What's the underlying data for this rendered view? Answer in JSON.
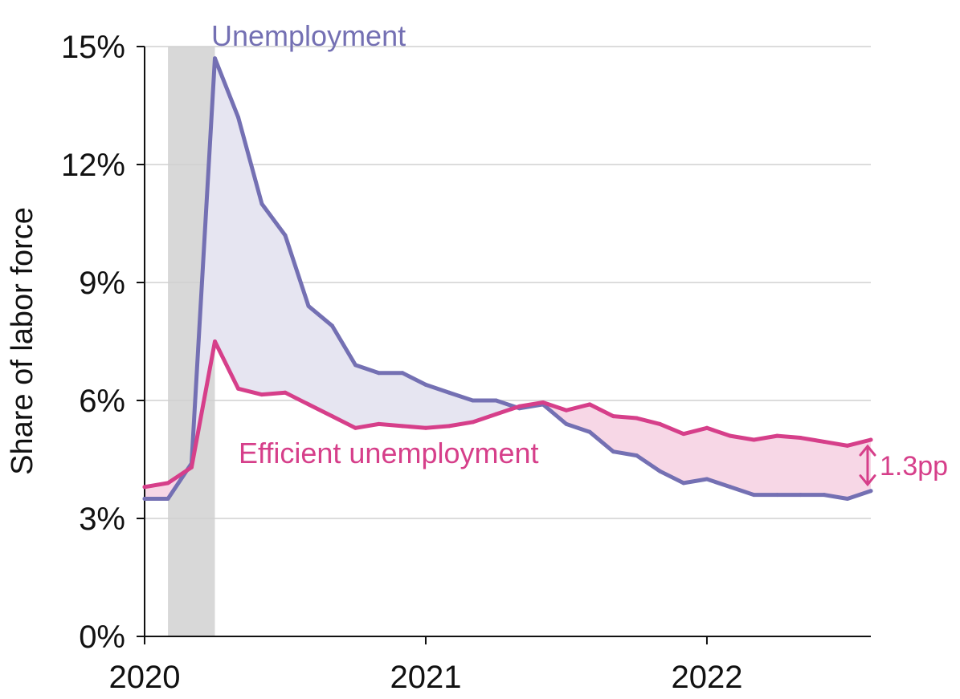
{
  "chart_data": {
    "type": "line",
    "ylabel": "Share of labor force",
    "xlabel": "",
    "xlim": [
      2020.0,
      2022.583
    ],
    "ylim": [
      0,
      15
    ],
    "x_ticks": [
      {
        "value": 2020,
        "label": "2020"
      },
      {
        "value": 2021,
        "label": "2021"
      },
      {
        "value": 2022,
        "label": "2022"
      }
    ],
    "y_ticks": [
      {
        "value": 0,
        "label": "0%"
      },
      {
        "value": 3,
        "label": "3%"
      },
      {
        "value": 6,
        "label": "6%"
      },
      {
        "value": 9,
        "label": "9%"
      },
      {
        "value": 12,
        "label": "12%"
      },
      {
        "value": 15,
        "label": "15%"
      }
    ],
    "grid": "horizontal",
    "recession_shading": {
      "start": 2020.083,
      "end": 2020.25
    },
    "x": [
      2020.0,
      2020.083,
      2020.167,
      2020.25,
      2020.333,
      2020.417,
      2020.5,
      2020.583,
      2020.667,
      2020.75,
      2020.833,
      2020.917,
      2021.0,
      2021.083,
      2021.167,
      2021.25,
      2021.333,
      2021.417,
      2021.5,
      2021.583,
      2021.667,
      2021.75,
      2021.833,
      2021.917,
      2022.0,
      2022.083,
      2022.167,
      2022.25,
      2022.333,
      2022.417,
      2022.5,
      2022.583
    ],
    "series": [
      {
        "name": "Unemployment",
        "color": "#7470b3",
        "values": [
          3.5,
          3.5,
          4.4,
          14.7,
          13.2,
          11.0,
          10.2,
          8.4,
          7.9,
          6.9,
          6.7,
          6.7,
          6.4,
          6.2,
          6.0,
          6.0,
          5.8,
          5.9,
          5.4,
          5.2,
          4.7,
          4.6,
          4.2,
          3.9,
          4.0,
          3.8,
          3.6,
          3.6,
          3.6,
          3.6,
          3.5,
          3.7
        ]
      },
      {
        "name": "Efficient unemployment",
        "color": "#d63f8a",
        "values": [
          3.8,
          3.9,
          4.3,
          7.5,
          6.3,
          6.15,
          6.2,
          5.9,
          5.6,
          5.3,
          5.4,
          5.35,
          5.3,
          5.35,
          5.45,
          5.65,
          5.85,
          5.95,
          5.75,
          5.9,
          5.6,
          5.55,
          5.4,
          5.15,
          5.3,
          5.1,
          5.0,
          5.1,
          5.05,
          4.95,
          4.85,
          5.0
        ]
      }
    ],
    "annotations": [
      {
        "text": "1.3pp",
        "color": "#d63f8a"
      }
    ],
    "colors": {
      "fill_above": "#e6e5f1",
      "fill_below": "#f7d7e6",
      "grid": "#d0d0d0",
      "recession": "#d8d8d8"
    }
  }
}
